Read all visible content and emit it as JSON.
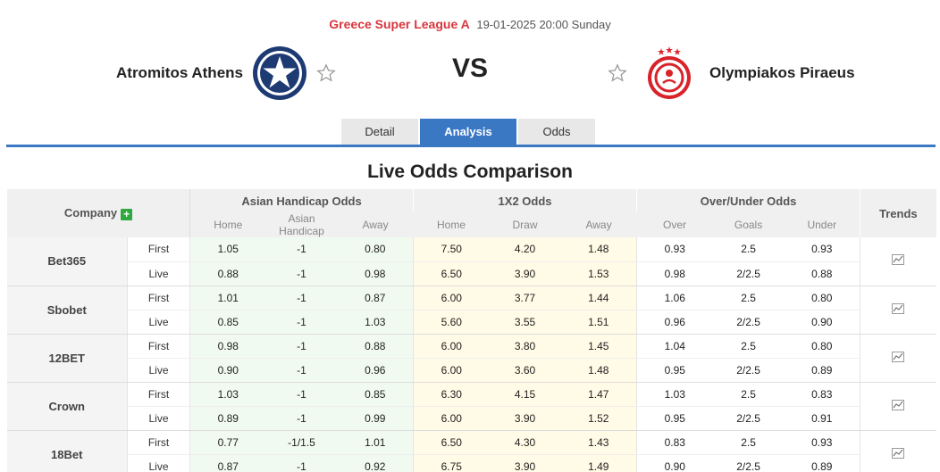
{
  "header": {
    "league": "Greece Super League A",
    "datetime": "19-01-2025 20:00 Sunday",
    "home_team": "Atromitos Athens",
    "away_team": "Olympiakos Piraeus",
    "vs": "VS"
  },
  "tabs": [
    {
      "label": "Detail",
      "active": false
    },
    {
      "label": "Analysis",
      "active": true
    },
    {
      "label": "Odds",
      "active": false
    }
  ],
  "section_title": "Live Odds Comparison",
  "table": {
    "company_header": "Company",
    "trends_header": "Trends",
    "groups": {
      "asian": "Asian Handicap Odds",
      "x12": "1X2 Odds",
      "ou": "Over/Under Odds"
    },
    "subheaders": {
      "asian": [
        "Home",
        "Asian Handicap",
        "Away"
      ],
      "x12": [
        "Home",
        "Draw",
        "Away"
      ],
      "ou": [
        "Over",
        "Goals",
        "Under"
      ]
    },
    "rows": [
      {
        "company": "Bet365",
        "first": {
          "label": "First",
          "ah": [
            "1.05",
            "-1",
            "0.80"
          ],
          "x12": [
            "7.50",
            "4.20",
            "1.48"
          ],
          "ou": [
            "0.93",
            "2.5",
            "0.93"
          ]
        },
        "live": {
          "label": "Live",
          "ah": [
            "0.88",
            "-1",
            "0.98"
          ],
          "x12": [
            "6.50",
            "3.90",
            "1.53"
          ],
          "ou": [
            "0.98",
            "2/2.5",
            "0.88"
          ]
        }
      },
      {
        "company": "Sbobet",
        "first": {
          "label": "First",
          "ah": [
            "1.01",
            "-1",
            "0.87"
          ],
          "x12": [
            "6.00",
            "3.77",
            "1.44"
          ],
          "ou": [
            "1.06",
            "2.5",
            "0.80"
          ]
        },
        "live": {
          "label": "Live",
          "ah": [
            "0.85",
            "-1",
            "1.03"
          ],
          "x12": [
            "5.60",
            "3.55",
            "1.51"
          ],
          "ou": [
            "0.96",
            "2/2.5",
            "0.90"
          ]
        }
      },
      {
        "company": "12BET",
        "first": {
          "label": "First",
          "ah": [
            "0.98",
            "-1",
            "0.88"
          ],
          "x12": [
            "6.00",
            "3.80",
            "1.45"
          ],
          "ou": [
            "1.04",
            "2.5",
            "0.80"
          ]
        },
        "live": {
          "label": "Live",
          "ah": [
            "0.90",
            "-1",
            "0.96"
          ],
          "x12": [
            "6.00",
            "3.60",
            "1.48"
          ],
          "ou": [
            "0.95",
            "2/2.5",
            "0.89"
          ]
        }
      },
      {
        "company": "Crown",
        "first": {
          "label": "First",
          "ah": [
            "1.03",
            "-1",
            "0.85"
          ],
          "x12": [
            "6.30",
            "4.15",
            "1.47"
          ],
          "ou": [
            "1.03",
            "2.5",
            "0.83"
          ]
        },
        "live": {
          "label": "Live",
          "ah": [
            "0.89",
            "-1",
            "0.99"
          ],
          "x12": [
            "6.00",
            "3.90",
            "1.52"
          ],
          "ou": [
            "0.95",
            "2/2.5",
            "0.91"
          ]
        }
      },
      {
        "company": "18Bet",
        "first": {
          "label": "First",
          "ah": [
            "0.77",
            "-1/1.5",
            "1.01"
          ],
          "x12": [
            "6.50",
            "4.30",
            "1.43"
          ],
          "ou": [
            "0.83",
            "2.5",
            "0.93"
          ]
        },
        "live": {
          "label": "Live",
          "ah": [
            "0.87",
            "-1",
            "0.92"
          ],
          "x12": [
            "6.75",
            "3.90",
            "1.49"
          ],
          "ou": [
            "0.90",
            "2/2.5",
            "0.89"
          ]
        }
      }
    ]
  },
  "icons": {
    "star": "star-outline-icon",
    "plus": "plus-icon",
    "trend": "trend-chart-icon"
  },
  "colors": {
    "accent": "#3b78c4",
    "league": "#d9363e",
    "plus": "#2fa83f"
  }
}
